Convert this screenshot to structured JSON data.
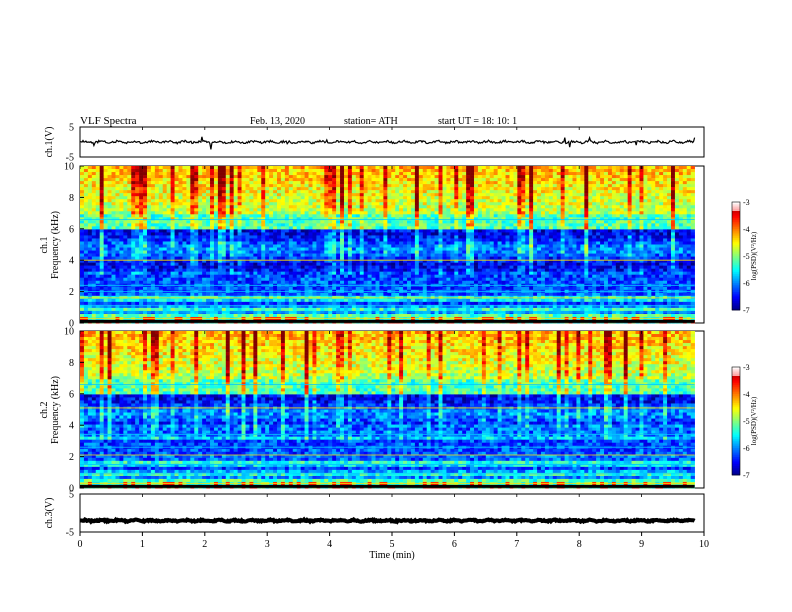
{
  "header": {
    "title": "VLF Spectra",
    "date": "Feb. 13, 2020",
    "station": "station= ATH",
    "start": "start UT =  18: 10: 1"
  },
  "chart_data": [
    {
      "type": "line",
      "name": "ch1-waveform",
      "ylabel": "ch.1(V)",
      "ylim": [
        -5,
        5
      ],
      "yticks": [
        "5",
        "-5"
      ],
      "xlim": [
        0,
        10
      ],
      "baseline": 0,
      "amplitude": 0.4
    },
    {
      "type": "heatmap",
      "name": "ch1-spectrogram",
      "ylabel_top": "ch.1",
      "ylabel": "Frequency (kHz)",
      "ylim": [
        0,
        10
      ],
      "yticks": [
        "0",
        "2",
        "4",
        "6",
        "8",
        "10"
      ],
      "xlim": [
        0,
        9.85
      ],
      "colorbar": {
        "label": "log(PSD)(V²/Hz)",
        "range": [
          -7,
          -3
        ],
        "ticks": [
          "-3",
          "-4",
          "-5",
          "-6",
          "-7"
        ]
      }
    },
    {
      "type": "heatmap",
      "name": "ch2-spectrogram",
      "ylabel_top": "ch.2",
      "ylabel": "Frequency (kHz)",
      "ylim": [
        0,
        10
      ],
      "yticks": [
        "0",
        "2",
        "4",
        "6",
        "8",
        "10"
      ],
      "xlim": [
        0,
        9.85
      ],
      "colorbar": {
        "label": "log(PSD)(V²/Hz)",
        "range": [
          -7,
          -3
        ],
        "ticks": [
          "-3",
          "-4",
          "-5",
          "-6",
          "-7"
        ]
      }
    },
    {
      "type": "line",
      "name": "ch3-waveform",
      "ylabel": "ch.3(V)",
      "ylim": [
        -5,
        5
      ],
      "yticks": [
        "5",
        "-5"
      ],
      "xlim": [
        0,
        10
      ],
      "baseline": -2,
      "amplitude": 0.2
    }
  ],
  "xaxis": {
    "label": "Time  (min)",
    "range": [
      0,
      10
    ],
    "ticks": [
      "0",
      "1",
      "2",
      "3",
      "4",
      "5",
      "6",
      "7",
      "8",
      "9",
      "10"
    ]
  }
}
